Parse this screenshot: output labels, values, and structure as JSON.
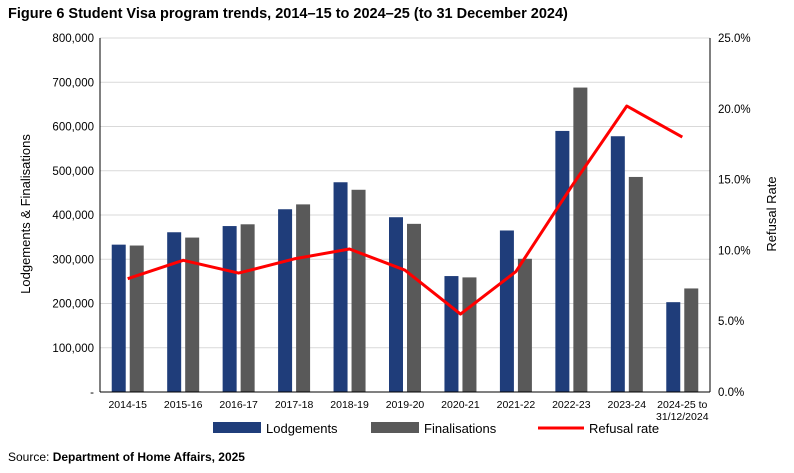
{
  "title": "Figure 6 Student Visa program trends, 2014–15 to 2024–25 (to 31 December 2024)",
  "source": {
    "label": "Source:",
    "value": "Department of Home Affairs, 2025"
  },
  "colors": {
    "lodgements": "#1f3d7a",
    "finalisations": "#595959",
    "refusal": "#ff0000",
    "grid": "#d9d9d9",
    "axis": "#000000"
  },
  "chart_data": {
    "type": "bar",
    "categories": [
      [
        "2014-15"
      ],
      [
        "2015-16"
      ],
      [
        "2016-17"
      ],
      [
        "2017-18"
      ],
      [
        "2018-19"
      ],
      [
        "2019-20"
      ],
      [
        "2020-21"
      ],
      [
        "2021-22"
      ],
      [
        "2022-23"
      ],
      [
        "2023-24"
      ],
      [
        "2024-25 to",
        "31/12/2024"
      ]
    ],
    "series": [
      {
        "name": "Lodgements",
        "kind": "bar",
        "axis": "left",
        "values": [
          333000,
          361000,
          375000,
          413000,
          474000,
          395000,
          262000,
          365000,
          590000,
          578000,
          203000
        ]
      },
      {
        "name": "Finalisations",
        "kind": "bar",
        "axis": "left",
        "values": [
          331000,
          349000,
          379000,
          424000,
          457000,
          380000,
          259000,
          301000,
          688000,
          486000,
          234000
        ]
      },
      {
        "name": "Refusal rate",
        "kind": "line",
        "axis": "right",
        "values": [
          8.0,
          9.3,
          8.4,
          9.4,
          10.1,
          8.6,
          5.5,
          8.5,
          14.5,
          20.2,
          18.0
        ]
      }
    ],
    "ylabel": "Lodgements & Finalisations",
    "y2label": "Refusal Rate",
    "ylim": [
      0,
      800000
    ],
    "y2lim": [
      0,
      25
    ],
    "yticks": [
      "-",
      "100,000",
      "200,000",
      "300,000",
      "400,000",
      "500,000",
      "600,000",
      "700,000",
      "800,000"
    ],
    "y2ticks": [
      "0.0%",
      "5.0%",
      "10.0%",
      "15.0%",
      "20.0%",
      "25.0%"
    ],
    "grid": "horizontal",
    "legend": "bottom"
  }
}
